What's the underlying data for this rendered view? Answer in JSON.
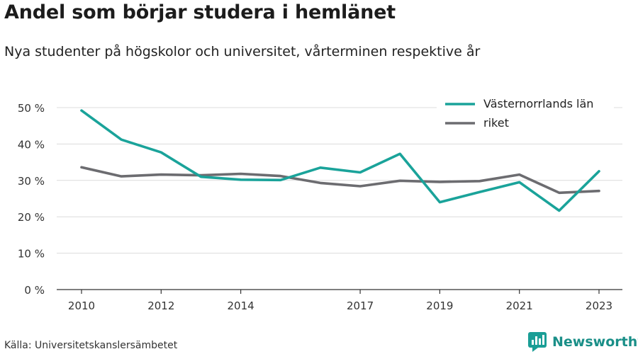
{
  "title": "Andel som börjar studera i hemlänet",
  "subtitle": "Nya studenter på högskolor och universitet, vårterminen respektive år",
  "source": "Källa: Universitetskanslersämbetet",
  "brand": {
    "name": "Newsworthy",
    "icon": "bar-chart-logo-icon",
    "color": "#1a9e96"
  },
  "chart_data": {
    "type": "line",
    "x": [
      2010,
      2011,
      2012,
      2013,
      2014,
      2015,
      2016,
      2017,
      2018,
      2019,
      2020,
      2021,
      2022,
      2023
    ],
    "x_ticks": [
      2010,
      2012,
      2014,
      2017,
      2019,
      2021,
      2023
    ],
    "y_ticks": [
      0,
      10,
      20,
      30,
      40,
      50
    ],
    "y_tick_labels": [
      "0 %",
      "10 %",
      "20 %",
      "30 %",
      "40 %",
      "50 %"
    ],
    "ylim": [
      0,
      50
    ],
    "grid": true,
    "legend_position": "top-right",
    "series": [
      {
        "name": "Västernorrlands län",
        "color": "#1aa39a",
        "values": [
          49.2,
          41.2,
          37.7,
          31.0,
          30.2,
          30.1,
          33.5,
          32.2,
          37.3,
          24.0,
          26.8,
          29.5,
          21.7,
          32.5
        ]
      },
      {
        "name": "riket",
        "color": "#6c6c70",
        "values": [
          33.6,
          31.1,
          31.6,
          31.4,
          31.8,
          31.2,
          29.3,
          28.4,
          29.9,
          29.6,
          29.8,
          31.6,
          26.6,
          27.1
        ]
      }
    ]
  }
}
